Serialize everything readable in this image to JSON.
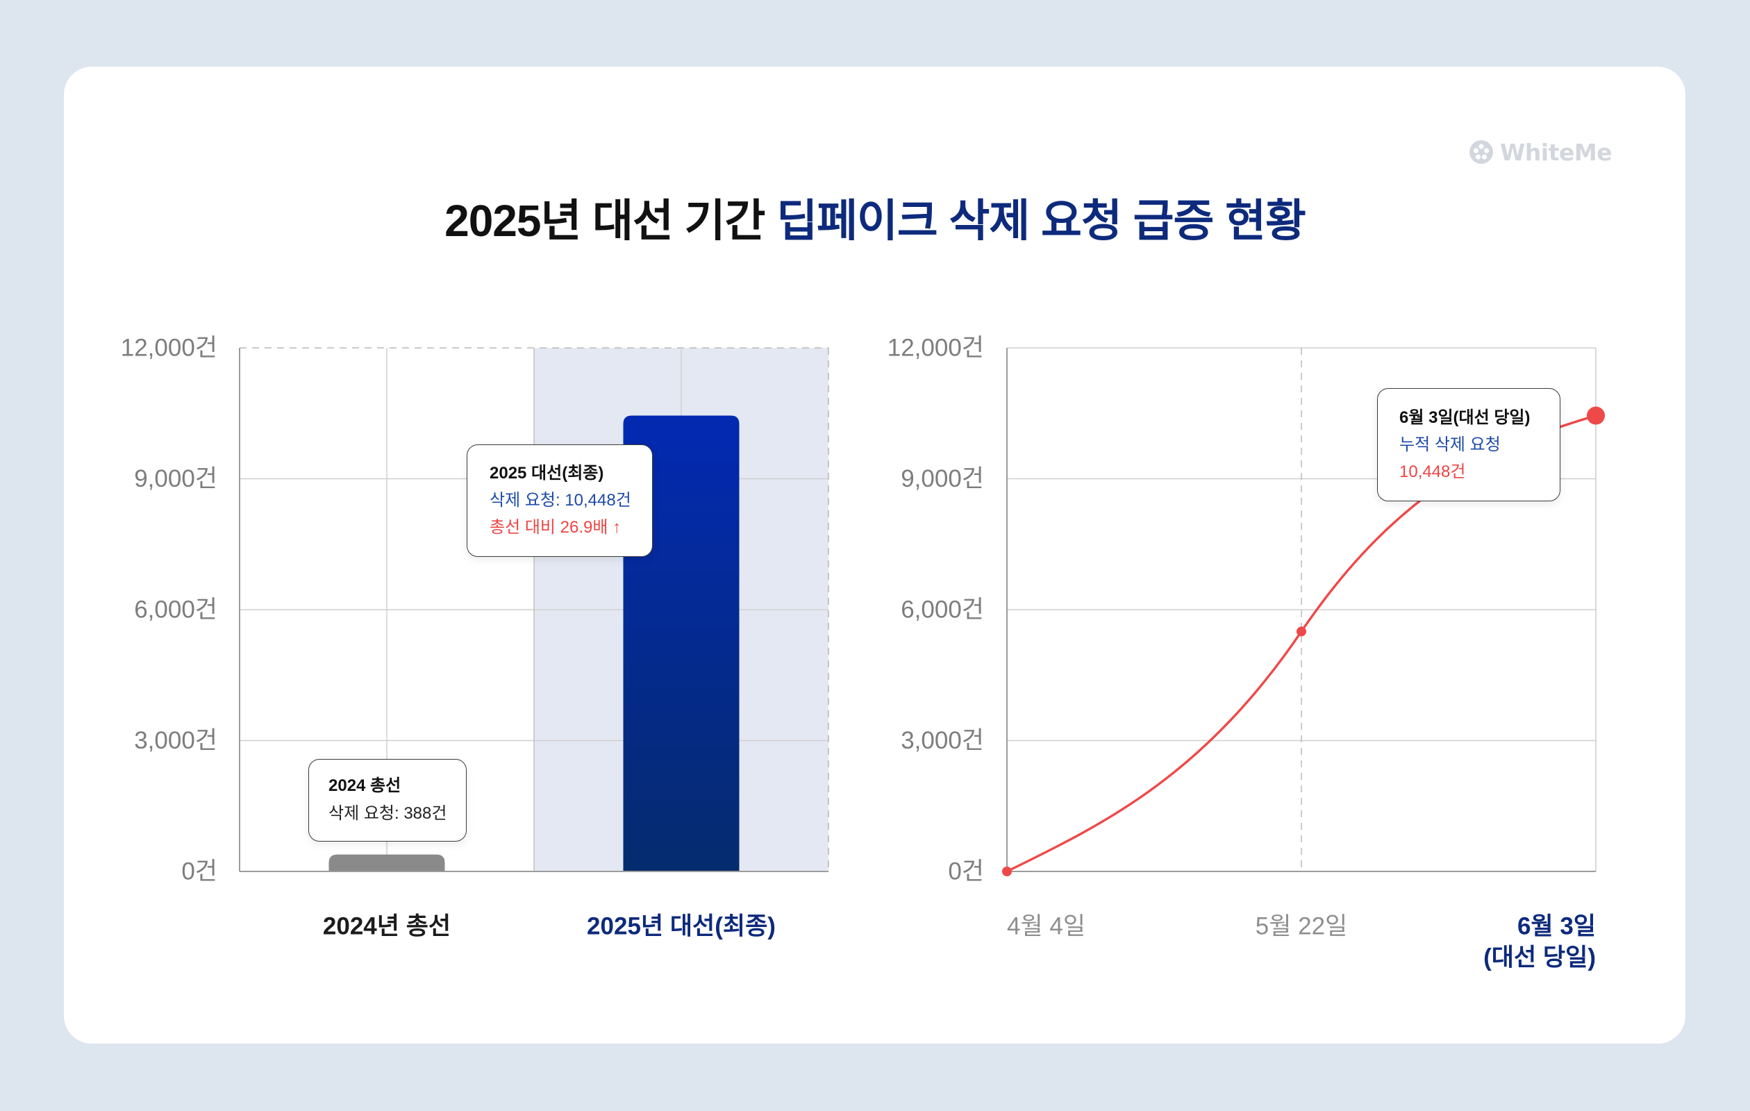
{
  "watermark": {
    "text": "WhiteMe",
    "icon": "whiteme-logo-icon"
  },
  "title": {
    "lead": "2025년 대선 기간 ",
    "emphasis": "딥페이크 삭제 요청 급증 현황"
  },
  "colors": {
    "background": "#dde5ee",
    "card": "#ffffff",
    "title_text": "#111111",
    "title_accent": "#0d2a7c",
    "bar_default": "#8a8a8a",
    "bar_highlight_top": "#0329b2",
    "bar_highlight_bottom": "#052b6e",
    "highlight_band": "#e4e8f2",
    "line": "#ef4848",
    "value_blue": "#1d4aa8",
    "value_red": "#ef4444",
    "axis_label": "#7d7d7d",
    "muted_label": "#8e8e8e",
    "watermark": "#d3d7dd"
  },
  "chart_data": [
    {
      "type": "bar",
      "categories": [
        "2024년 총선",
        "2025년 대선(최종)"
      ],
      "values": [
        388,
        10448
      ],
      "ylim": [
        0,
        12000
      ],
      "yticks": [
        0,
        3000,
        6000,
        9000,
        12000
      ],
      "ytick_labels": [
        "0건",
        "3,000건",
        "6,000건",
        "9,000건",
        "12,000건"
      ],
      "highlight_category": "2025년 대선(최종)",
      "grid": true,
      "annotations": [
        {
          "title": "2024 총선",
          "lines": [
            "삭제 요청: 388건"
          ]
        },
        {
          "title": "2025 대선(최종)",
          "lines": [
            "삭제 요청: 10,448건",
            "총선 대비 26.9배 ↑"
          ]
        }
      ]
    },
    {
      "type": "line",
      "x": [
        "4월 4일",
        "5월 22일",
        "6월 3일"
      ],
      "series": [
        {
          "values": [
            0,
            5500,
            10448
          ]
        }
      ],
      "ylim": [
        0,
        12000
      ],
      "yticks": [
        0,
        3000,
        6000,
        9000,
        12000
      ],
      "ytick_labels": [
        "0건",
        "3,000건",
        "6,000건",
        "9,000건",
        "12,000건"
      ],
      "highlight_x": "6월 3일",
      "highlight_x_note": "(대선 당일)",
      "grid": true,
      "annotations": [
        {
          "title": "6월 3일(대선 당일)",
          "lines": [
            "누적 삭제 요청",
            "10,448건"
          ]
        }
      ]
    }
  ]
}
